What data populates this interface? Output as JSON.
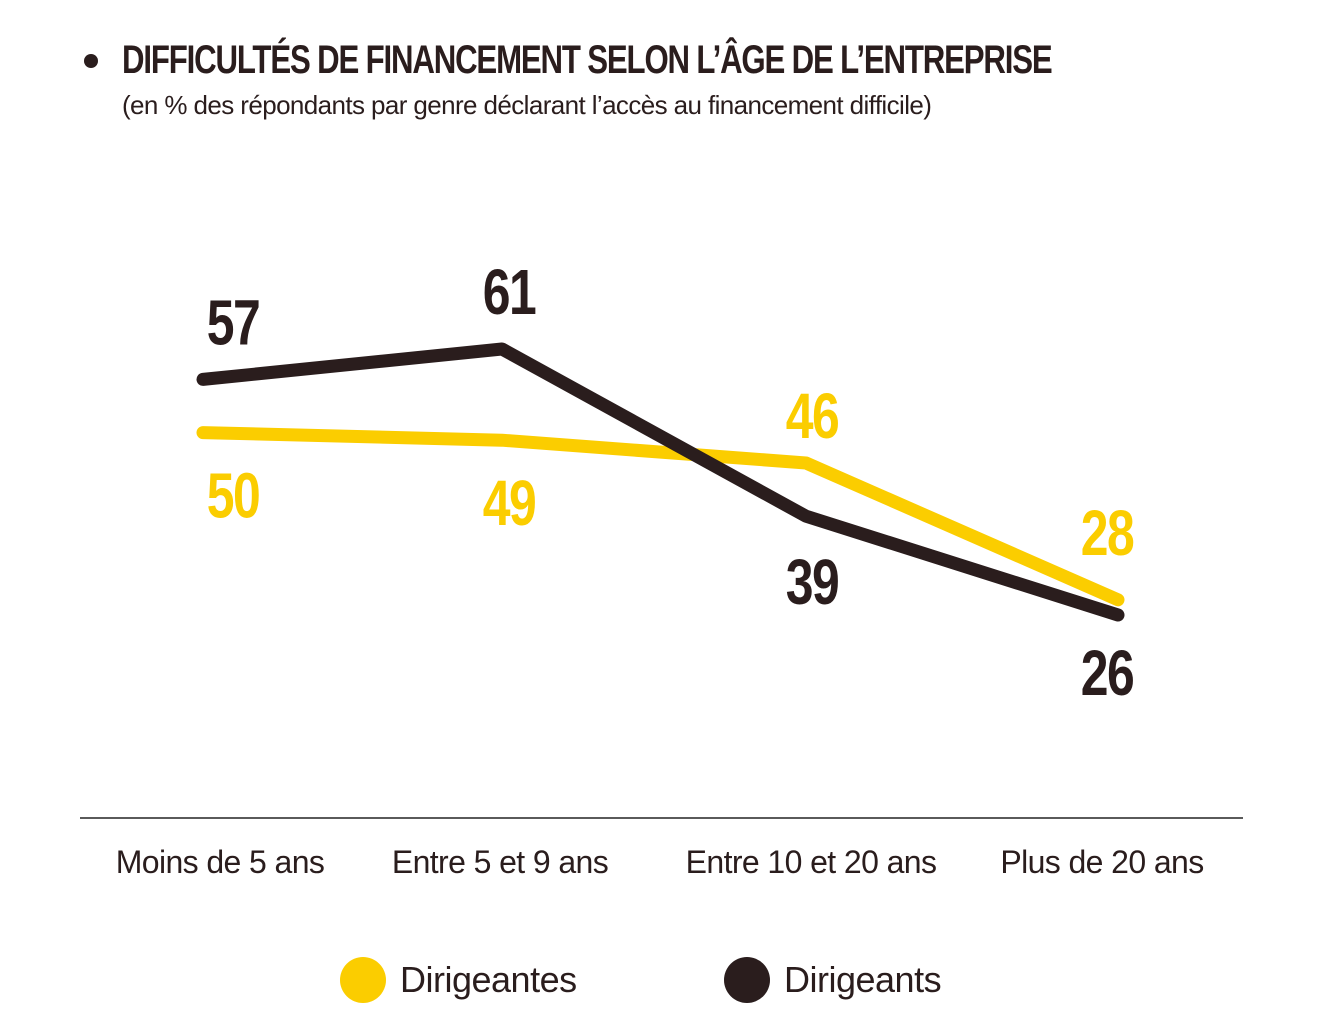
{
  "header": {
    "title": "DIFFICULTÉS DE FINANCEMENT SELON L’ÂGE DE L’ENTREPRISE",
    "subtitle": "(en % des répondants par genre déclarant l’accès au financement difficile)"
  },
  "colors": {
    "women": "#fbcd00",
    "men": "#2a1d1d",
    "axis": "#5a5a5a",
    "text": "#2a1d1d"
  },
  "chart_data": {
    "type": "line",
    "title": "DIFFICULTÉS DE FINANCEMENT SELON L’ÂGE DE L’ENTREPRISE",
    "subtitle": "(en % des répondants par genre déclarant l’accès au financement difficile)",
    "categories": [
      "Moins de 5 ans",
      "Entre 5 et 9 ans",
      "Entre 10 et 20 ans",
      "Plus de 20 ans"
    ],
    "series": [
      {
        "name": "Dirigeantes",
        "values": [
          50,
          49,
          46,
          28
        ],
        "color": "#fbcd00"
      },
      {
        "name": "Dirigeants",
        "values": [
          57,
          61,
          39,
          26
        ],
        "color": "#2a1d1d"
      }
    ],
    "xlabel": "",
    "ylabel": "",
    "grid": false,
    "legend": "bottom-center",
    "data_labels": true
  },
  "legend": {
    "items": [
      {
        "label": "Dirigeantes",
        "color": "#fbcd00"
      },
      {
        "label": "Dirigeants",
        "color": "#2a1d1d"
      }
    ]
  }
}
